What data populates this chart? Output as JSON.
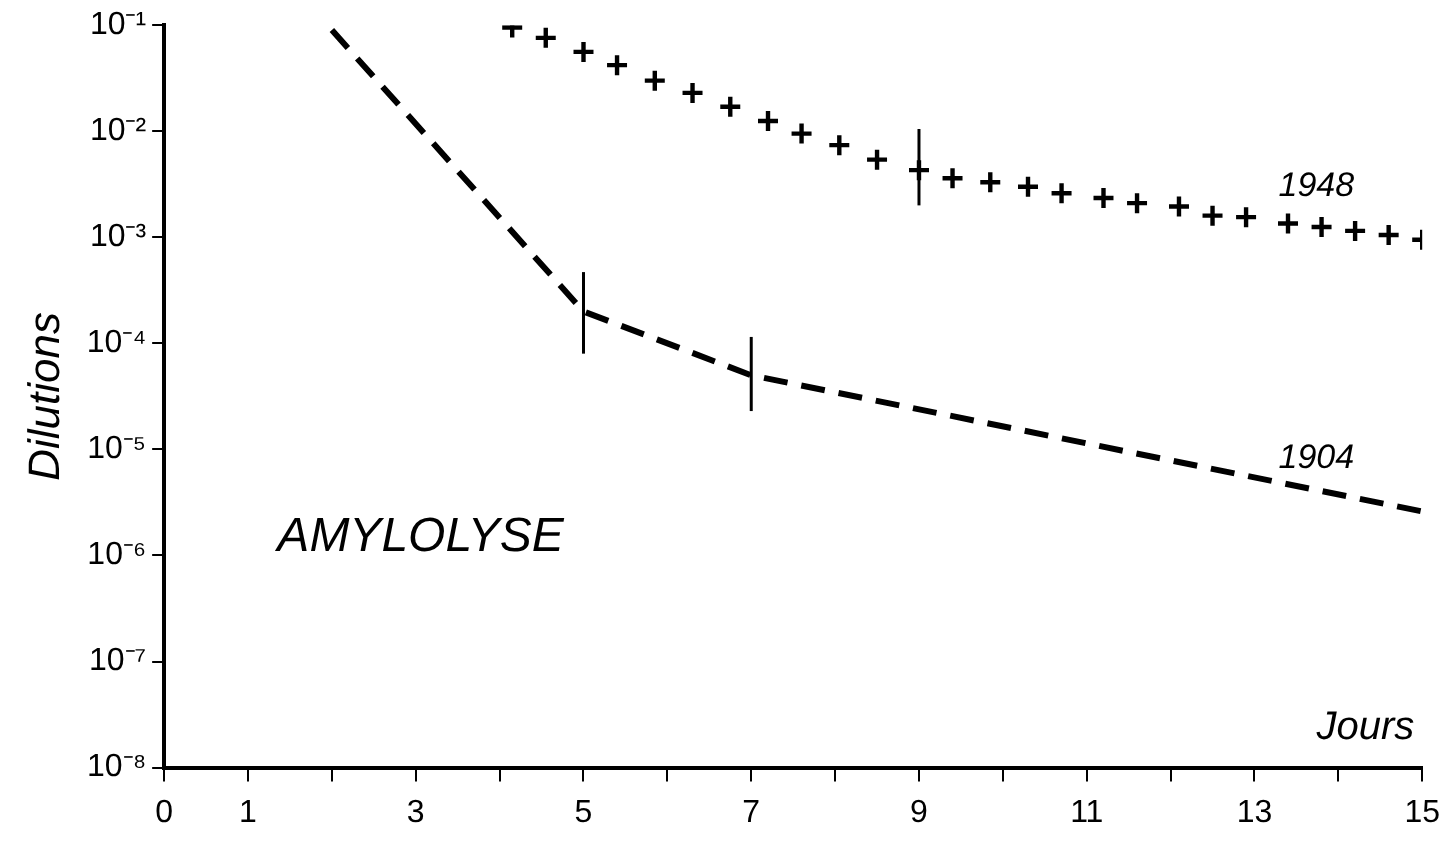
{
  "chart_data": {
    "type": "line",
    "xlabel": "Jours",
    "ylabel": "Dilutions",
    "annotations": [
      "AMYLOLYSE"
    ],
    "log": "y",
    "grid": false,
    "legend": false,
    "xlim": [
      0,
      15
    ],
    "xticks": [
      0,
      1,
      {
        "value": 2,
        "label": null
      },
      3,
      {
        "value": 4,
        "label": null
      },
      5,
      {
        "value": 6,
        "label": null
      },
      7,
      {
        "value": 8,
        "label": null
      },
      9,
      {
        "value": 10,
        "label": null
      },
      11,
      {
        "value": 12,
        "label": null
      },
      13,
      {
        "value": 14,
        "label": null
      },
      15
    ],
    "ylim": [
      1e-08,
      0.1
    ],
    "yticks": [
      {
        "value": 1e-08,
        "label": "10⁻⁸"
      },
      {
        "value": 1e-07,
        "label": "10⁻⁷"
      },
      {
        "value": 1e-06,
        "label": "10⁻⁶"
      },
      {
        "value": 1e-05,
        "label": "10⁻⁵"
      },
      {
        "value": 0.0001,
        "label": "10⁻⁴"
      },
      {
        "value": 0.001,
        "label": "10⁻³"
      },
      {
        "value": 0.01,
        "label": "10⁻²"
      },
      {
        "value": 0.1,
        "label": "10⁻¹"
      }
    ],
    "series": [
      {
        "name": "1904",
        "type": "line",
        "color": "#000000",
        "line_style": "dashed",
        "marker": "none",
        "x": [
          2,
          5,
          7,
          15
        ],
        "values": [
          0.09,
          0.0002,
          5e-05,
          2.6e-06
        ],
        "errors": [
          null,
          [
            8e-05,
            0.00047
          ],
          [
            2.3e-05,
            0.000115
          ],
          null
        ]
      },
      {
        "name": "1948",
        "type": "scatter",
        "color": "#000000",
        "marker": "cross",
        "x": [
          4.15,
          4.55,
          5.0,
          5.4,
          5.85,
          6.3,
          6.75,
          7.2,
          7.6,
          8.05,
          8.5,
          9.0,
          9.4,
          9.85,
          10.3,
          10.7,
          11.2,
          11.6,
          12.1,
          12.5,
          12.9,
          13.4,
          13.8,
          14.2,
          14.6,
          15.0
        ],
        "values": [
          0.095,
          0.076,
          0.056,
          0.042,
          0.03,
          0.023,
          0.017,
          0.0125,
          0.0095,
          0.0074,
          0.0054,
          0.0043,
          0.0036,
          0.0033,
          0.003,
          0.0026,
          0.00235,
          0.0021,
          0.00195,
          0.0016,
          0.00155,
          0.00135,
          0.00125,
          0.00115,
          0.00105,
          0.00095
        ],
        "errors": [
          null,
          null,
          null,
          null,
          null,
          null,
          null,
          null,
          null,
          null,
          null,
          [
            0.002,
            0.0105
          ],
          null,
          null,
          null,
          null,
          null,
          null,
          null,
          null,
          null,
          null,
          null,
          null,
          null,
          null
        ]
      }
    ]
  }
}
